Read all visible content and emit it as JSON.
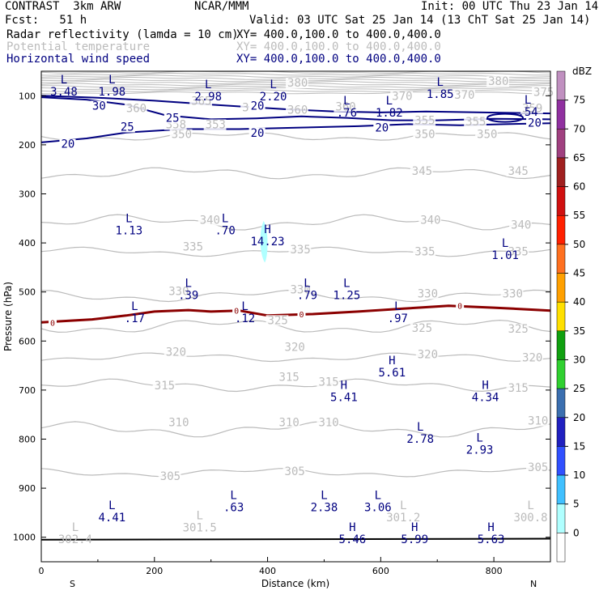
{
  "header": {
    "model": "CONTRAST  3km ARW",
    "org": "NCAR/MMM",
    "init": "Init: 00 UTC Thu 23 Jan 14",
    "fcst": "Fcst:   51 h",
    "valid": "Valid: 03 UTC Sat 25 Jan 14 (13 ChT Sat 25 Jan 14)",
    "fields": [
      {
        "name": "Radar reflectivity (lamda = 10 cm)",
        "xy": "XY= 400.0,100.0 to 400.0,400.0",
        "color": "#000000"
      },
      {
        "name": "Potential temperature",
        "xy": "XY= 400.0,100.0 to 400.0,400.0",
        "color": "#bbbbbb"
      },
      {
        "name": "Horizontal wind speed",
        "xy": "XY= 400.0,100.0 to 400.0,400.0",
        "color": "#000080"
      }
    ]
  },
  "chart_data": {
    "type": "cross-section contour",
    "xlabel": "Distance (km)",
    "ylabel": "Pressure (hPa)",
    "xlim": [
      0,
      900
    ],
    "ylim": [
      1050,
      50
    ],
    "x_ticks": [
      0,
      200,
      400,
      600,
      800
    ],
    "y_ticks": [
      100,
      200,
      300,
      400,
      500,
      600,
      700,
      800,
      900,
      1000
    ],
    "x_end_labels": [
      "S",
      "N"
    ],
    "colorbar": {
      "title": "dBZ",
      "levels": [
        "0",
        "5",
        "10",
        "15",
        "20",
        "25",
        "30",
        "35",
        "40",
        "45",
        "50",
        "55",
        "60",
        "65",
        "70",
        "75"
      ],
      "colors": [
        "#ffffff",
        "#b0ffff",
        "#40c0ff",
        "#3050ff",
        "#2020c0",
        "#3b6fb0",
        "#30d030",
        "#10a010",
        "#ffe000",
        "#ffa000",
        "#ff7020",
        "#ff2000",
        "#d01010",
        "#a02020",
        "#a04080",
        "#9030a0",
        "#c090c0"
      ]
    },
    "theta_contours": [
      {
        "value": "350",
        "p": 183
      },
      {
        "value": "345",
        "p": 258
      },
      {
        "value": "340",
        "p": 358
      },
      {
        "value": "335",
        "p": 418
      },
      {
        "value": "330",
        "p": 508
      },
      {
        "value": "325",
        "p": 570
      },
      {
        "value": "320",
        "p": 633
      },
      {
        "value": "315",
        "p": 690
      },
      {
        "value": "310",
        "p": 780
      },
      {
        "value": "305",
        "p": 868
      }
    ],
    "theta_labels": [
      {
        "t": "350",
        "x": 230,
        "p": 183
      },
      {
        "t": "350",
        "x": 660,
        "p": 183
      },
      {
        "t": "350",
        "x": 770,
        "p": 183
      },
      {
        "t": "345",
        "x": 655,
        "p": 258
      },
      {
        "t": "345",
        "x": 825,
        "p": 258
      },
      {
        "t": "340",
        "x": 280,
        "p": 358
      },
      {
        "t": "340",
        "x": 670,
        "p": 358
      },
      {
        "t": "340",
        "x": 830,
        "p": 368
      },
      {
        "t": "335",
        "x": 250,
        "p": 412
      },
      {
        "t": "335",
        "x": 440,
        "p": 418
      },
      {
        "t": "335",
        "x": 660,
        "p": 422
      },
      {
        "t": "335",
        "x": 825,
        "p": 422
      },
      {
        "t": "330",
        "x": 225,
        "p": 503
      },
      {
        "t": "330",
        "x": 440,
        "p": 500
      },
      {
        "t": "330",
        "x": 665,
        "p": 508
      },
      {
        "t": "330",
        "x": 815,
        "p": 508
      },
      {
        "t": "325",
        "x": 400,
        "p": 562
      },
      {
        "t": "325",
        "x": 655,
        "p": 578
      },
      {
        "t": "325",
        "x": 825,
        "p": 580
      },
      {
        "t": "320",
        "x": 220,
        "p": 627
      },
      {
        "t": "320",
        "x": 430,
        "p": 617
      },
      {
        "t": "320",
        "x": 665,
        "p": 632
      },
      {
        "t": "320",
        "x": 850,
        "p": 638
      },
      {
        "t": "315",
        "x": 200,
        "p": 695
      },
      {
        "t": "315",
        "x": 420,
        "p": 678
      },
      {
        "t": "315",
        "x": 490,
        "p": 688
      },
      {
        "t": "315",
        "x": 825,
        "p": 700
      },
      {
        "t": "310",
        "x": 225,
        "p": 770
      },
      {
        "t": "310",
        "x": 420,
        "p": 770
      },
      {
        "t": "310",
        "x": 490,
        "p": 770
      },
      {
        "t": "310",
        "x": 860,
        "p": 767
      },
      {
        "t": "305",
        "x": 210,
        "p": 880
      },
      {
        "t": "305",
        "x": 430,
        "p": 870
      },
      {
        "t": "305",
        "x": 860,
        "p": 862
      }
    ],
    "upper_theta_labels": [
      {
        "t": "380",
        "x": 435,
        "p": 78
      },
      {
        "t": "380",
        "x": 790,
        "p": 75
      },
      {
        "t": "370",
        "x": 620,
        "p": 105
      },
      {
        "t": "370",
        "x": 730,
        "p": 103
      },
      {
        "t": "365",
        "x": 265,
        "p": 115
      },
      {
        "t": "360",
        "x": 150,
        "p": 130
      },
      {
        "t": "360",
        "x": 355,
        "p": 128
      },
      {
        "t": "360",
        "x": 435,
        "p": 133
      },
      {
        "t": "360",
        "x": 520,
        "p": 127
      },
      {
        "t": "355",
        "x": 660,
        "p": 155
      },
      {
        "t": "355",
        "x": 750,
        "p": 157
      },
      {
        "t": "353",
        "x": 290,
        "p": 163
      },
      {
        "t": "358",
        "x": 220,
        "p": 163
      },
      {
        "t": "359",
        "x": 850,
        "p": 130
      },
      {
        "t": "375",
        "x": 870,
        "p": 97
      }
    ],
    "wind_contours": [
      {
        "value": "30",
        "kind": "jet30"
      },
      {
        "value": "25",
        "kind": "jet25"
      },
      {
        "value": "20",
        "kind": "jet20"
      }
    ],
    "wind_labels": [
      {
        "t": "30",
        "x": 90,
        "p": 125
      },
      {
        "t": "25",
        "x": 140,
        "p": 168
      },
      {
        "t": "20",
        "x": 35,
        "p": 203
      },
      {
        "t": "20",
        "x": 370,
        "p": 125
      },
      {
        "t": "20",
        "x": 370,
        "p": 180
      },
      {
        "t": "20",
        "x": 590,
        "p": 170
      },
      {
        "t": "20",
        "x": 860,
        "p": 160
      },
      {
        "t": "25",
        "x": 220,
        "p": 150
      }
    ],
    "freezing_level": {
      "value": "0",
      "points": [
        [
          0,
          562
        ],
        [
          90,
          556
        ],
        [
          150,
          548
        ],
        [
          200,
          540
        ],
        [
          260,
          537
        ],
        [
          300,
          540
        ],
        [
          350,
          538
        ],
        [
          400,
          548
        ],
        [
          480,
          545
        ],
        [
          560,
          540
        ],
        [
          640,
          534
        ],
        [
          720,
          528
        ],
        [
          800,
          532
        ],
        [
          900,
          538
        ]
      ]
    },
    "extrema": [
      {
        "type": "L",
        "value": "3.48",
        "x": 40,
        "p": 75
      },
      {
        "type": "L",
        "value": "1.98",
        "x": 125,
        "p": 75
      },
      {
        "type": "L",
        "value": "2.98",
        "x": 295,
        "p": 85
      },
      {
        "type": "L",
        "value": "2.20",
        "x": 410,
        "p": 85
      },
      {
        "type": "L",
        "value": ".76",
        "x": 540,
        "p": 118
      },
      {
        "type": "L",
        "value": "1.82",
        "x": 615,
        "p": 118
      },
      {
        "type": "L",
        "value": "1.85",
        "x": 705,
        "p": 80
      },
      {
        "type": "L",
        "value": ".54",
        "x": 860,
        "p": 116
      },
      {
        "type": "L",
        "value": "1.13",
        "x": 155,
        "p": 358
      },
      {
        "type": "L",
        "value": ".70",
        "x": 325,
        "p": 358
      },
      {
        "type": "H",
        "value": "14.23",
        "x": 400,
        "p": 380
      },
      {
        "type": "L",
        "value": "1.01",
        "x": 820,
        "p": 408
      },
      {
        "type": "L",
        "value": ".39",
        "x": 260,
        "p": 490
      },
      {
        "type": "L",
        "value": ".79",
        "x": 470,
        "p": 490
      },
      {
        "type": "L",
        "value": "1.25",
        "x": 540,
        "p": 490
      },
      {
        "type": "L",
        "value": ".17",
        "x": 165,
        "p": 537
      },
      {
        "type": "L",
        "value": ".12",
        "x": 360,
        "p": 537
      },
      {
        "type": "L",
        "value": ".97",
        "x": 630,
        "p": 537
      },
      {
        "type": "H",
        "value": "5.61",
        "x": 620,
        "p": 647
      },
      {
        "type": "H",
        "value": "5.41",
        "x": 535,
        "p": 698
      },
      {
        "type": "H",
        "value": "4.34",
        "x": 785,
        "p": 698
      },
      {
        "type": "L",
        "value": "2.78",
        "x": 670,
        "p": 783
      },
      {
        "type": "L",
        "value": "2.93",
        "x": 775,
        "p": 805
      },
      {
        "type": "L",
        "value": "4.41",
        "x": 125,
        "p": 943
      },
      {
        "type": "L",
        "value": ".63",
        "x": 340,
        "p": 922
      },
      {
        "type": "L",
        "value": "2.38",
        "x": 500,
        "p": 922
      },
      {
        "type": "L",
        "value": "3.06",
        "x": 595,
        "p": 922
      },
      {
        "type": "L",
        "value": "301.2",
        "x": 640,
        "p": 943,
        "gray": true
      },
      {
        "type": "L",
        "value": "300.8",
        "x": 865,
        "p": 943,
        "gray": true
      },
      {
        "type": "L",
        "value": "301.5",
        "x": 280,
        "p": 963,
        "gray": true
      },
      {
        "type": "L",
        "value": "302.4",
        "x": 60,
        "p": 987,
        "gray": true
      },
      {
        "type": "H",
        "value": "5.46",
        "x": 550,
        "p": 987
      },
      {
        "type": "H",
        "value": "5.99",
        "x": 660,
        "p": 987
      },
      {
        "type": "H",
        "value": "5.63",
        "x": 795,
        "p": 987
      }
    ],
    "reflectivity_cell": {
      "dbz": "5",
      "x_center": 393,
      "p_top": 355,
      "p_bottom": 440
    }
  }
}
